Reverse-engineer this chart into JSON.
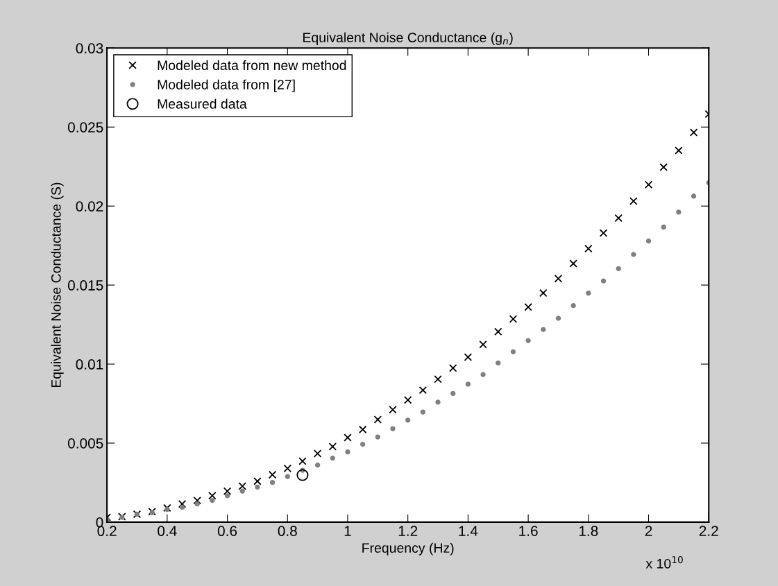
{
  "chart_data": {
    "type": "scatter",
    "title": "Equivalent Noise Conductance (g$_{n}$)",
    "xlabel": "Frequency (Hz)",
    "ylabel": "Equivalent Noise Conductance (S)",
    "annotations": [
      "x 10$^{10}$"
    ],
    "x": [
      0.2,
      0.25,
      0.3,
      0.35,
      0.4,
      0.45,
      0.5,
      0.55,
      0.6,
      0.65,
      0.7,
      0.75,
      0.8,
      0.85,
      0.9,
      0.95,
      1.0,
      1.05,
      1.1,
      1.15,
      1.2,
      1.25,
      1.3,
      1.35,
      1.4,
      1.45,
      1.5,
      1.55,
      1.6,
      1.65,
      1.7,
      1.75,
      1.8,
      1.85,
      1.9,
      1.95,
      2.0,
      2.05,
      2.1,
      2.15,
      2.2
    ],
    "series": [
      {
        "name": "Modeled data from new method",
        "color": "#000000",
        "marker": "cross",
        "values": [
          0.0003,
          0.00035,
          0.0005,
          0.00067,
          0.0009,
          0.00115,
          0.00137,
          0.00167,
          0.00196,
          0.00228,
          0.00259,
          0.003,
          0.0034,
          0.00386,
          0.00434,
          0.00478,
          0.00535,
          0.00586,
          0.00649,
          0.00712,
          0.00773,
          0.00835,
          0.00905,
          0.00975,
          0.01044,
          0.01124,
          0.01205,
          0.01285,
          0.01361,
          0.0145,
          0.01541,
          0.01636,
          0.01731,
          0.01829,
          0.01924,
          0.02031,
          0.02136,
          0.02246,
          0.02352,
          0.02466,
          0.02582
        ]
      },
      {
        "name": "Modeled data from [27]",
        "color": "#808080",
        "marker": "circle",
        "values": [
          0.0002,
          0.0003,
          0.0005,
          0.0006,
          0.0008,
          0.00094,
          0.00115,
          0.00137,
          0.00167,
          0.00196,
          0.00222,
          0.00251,
          0.00288,
          0.00328,
          0.00361,
          0.00405,
          0.00444,
          0.00493,
          0.00539,
          0.00591,
          0.00645,
          0.00697,
          0.00759,
          0.00814,
          0.00873,
          0.00934,
          0.01007,
          0.01078,
          0.01149,
          0.01219,
          0.0129,
          0.0137,
          0.01449,
          0.01526,
          0.01604,
          0.01694,
          0.01779,
          0.01867,
          0.01962,
          0.02063,
          0.02148
        ]
      },
      {
        "name": "Measured data",
        "color": "#000000",
        "marker": "circle",
        "x": [
          0.85
        ],
        "values": [
          0.00298
        ]
      }
    ],
    "xlim": [
      0.2,
      2.2
    ],
    "xticks": [
      0.2,
      0.4,
      0.6,
      0.8,
      1,
      1.2,
      1.4,
      1.6,
      1.8,
      2,
      2.2
    ],
    "ylim": [
      0,
      0.03
    ],
    "yticks": [
      0,
      0.005,
      0.01,
      0.015,
      0.02,
      0.025,
      0.03
    ],
    "grid": false,
    "legend": "top left"
  }
}
